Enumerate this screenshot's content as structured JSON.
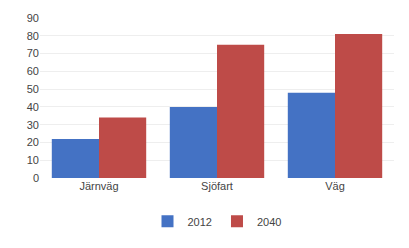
{
  "chart_data": {
    "type": "bar",
    "categories": [
      "Järnväg",
      "Sjöfart",
      "Väg"
    ],
    "series": [
      {
        "name": "2012",
        "color": "#4472C4",
        "values": [
          22,
          40,
          48
        ]
      },
      {
        "name": "2040",
        "color": "#BE4B48",
        "values": [
          34,
          75,
          81
        ]
      }
    ],
    "ylim": [
      0,
      90
    ],
    "yticks": [
      0,
      10,
      20,
      30,
      40,
      50,
      60,
      70,
      80,
      90
    ],
    "grid": true,
    "legend": "bottom"
  }
}
